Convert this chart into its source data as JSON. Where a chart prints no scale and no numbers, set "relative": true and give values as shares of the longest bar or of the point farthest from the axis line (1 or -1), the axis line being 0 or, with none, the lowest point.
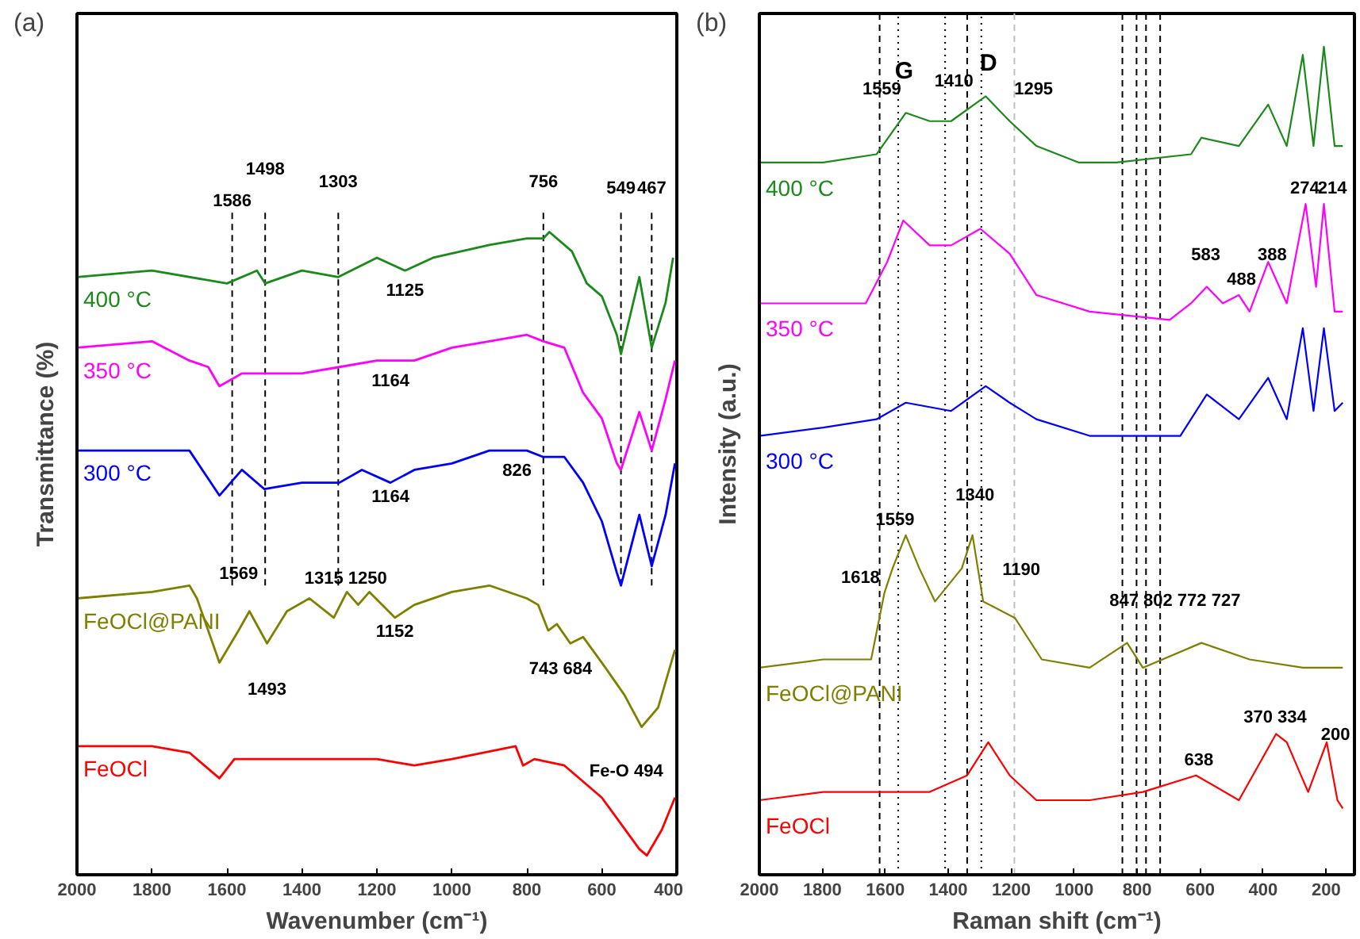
{
  "chart_data": [
    {
      "type": "line",
      "title": "(a)",
      "xlabel": "Wavenumber (cm⁻¹)",
      "ylabel": "Transmittance (%)",
      "relative": true,
      "xlim": [
        2000,
        400
      ],
      "xticks": [
        2000,
        1800,
        1600,
        1400,
        1200,
        1000,
        800,
        600,
        400
      ],
      "tick_labels": "x",
      "grid": false,
      "series": [
        {
          "name": "400 °C",
          "color": "#1a8a1a",
          "x": [
            2000,
            1800,
            1600,
            1520,
            1498,
            1400,
            1303,
            1200,
            1125,
            1050,
            900,
            800,
            756,
            740,
            680,
            640,
            600,
            560,
            549,
            500,
            467,
            430,
            410
          ],
          "values": [
            0.93,
            0.94,
            0.92,
            0.94,
            0.92,
            0.94,
            0.93,
            0.96,
            0.94,
            0.96,
            0.98,
            0.99,
            0.99,
            1,
            0.97,
            0.92,
            0.9,
            0.84,
            0.81,
            0.93,
            0.82,
            0.89,
            0.96
          ]
        },
        {
          "name": "350 °C",
          "color": "#ff00ff",
          "x": [
            2000,
            1800,
            1700,
            1650,
            1620,
            1560,
            1500,
            1400,
            1300,
            1200,
            1100,
            1000,
            900,
            800,
            756,
            700,
            650,
            600,
            560,
            549,
            500,
            467,
            430,
            405
          ],
          "values": [
            0.82,
            0.83,
            0.8,
            0.79,
            0.76,
            0.78,
            0.78,
            0.78,
            0.79,
            0.8,
            0.8,
            0.82,
            0.83,
            0.84,
            0.83,
            0.82,
            0.75,
            0.71,
            0.64,
            0.63,
            0.72,
            0.66,
            0.74,
            0.8
          ]
        },
        {
          "name": "300 °C",
          "color": "#0000ff",
          "x": [
            2000,
            1800,
            1700,
            1620,
            1560,
            1500,
            1400,
            1300,
            1240,
            1164,
            1100,
            1000,
            900,
            800,
            756,
            700,
            650,
            600,
            560,
            549,
            500,
            467,
            430,
            405
          ],
          "values": [
            0.66,
            0.66,
            0.66,
            0.59,
            0.63,
            0.6,
            0.61,
            0.61,
            0.63,
            0.61,
            0.63,
            0.64,
            0.66,
            0.66,
            0.65,
            0.65,
            0.61,
            0.55,
            0.47,
            0.45,
            0.56,
            0.48,
            0.56,
            0.64
          ]
        },
        {
          "name": "FeOCl@PANI",
          "color": "#808000",
          "x": [
            2000,
            1800,
            1700,
            1680,
            1620,
            1569,
            1540,
            1493,
            1440,
            1380,
            1315,
            1280,
            1250,
            1220,
            1152,
            1100,
            1000,
            900,
            800,
            770,
            743,
            720,
            684,
            650,
            600,
            540,
            494,
            450,
            405
          ],
          "values": [
            0.43,
            0.44,
            0.45,
            0.43,
            0.33,
            0.38,
            0.41,
            0.36,
            0.41,
            0.43,
            0.4,
            0.44,
            0.42,
            0.44,
            0.4,
            0.42,
            0.44,
            0.45,
            0.43,
            0.42,
            0.38,
            0.39,
            0.36,
            0.37,
            0.33,
            0.28,
            0.23,
            0.26,
            0.35
          ]
        },
        {
          "name": "FeOCl",
          "color": "#ff0000",
          "x": [
            2000,
            1800,
            1700,
            1620,
            1580,
            1400,
            1200,
            1100,
            1000,
            830,
            810,
            780,
            700,
            600,
            500,
            480,
            440,
            405
          ],
          "values": [
            0.2,
            0.2,
            0.19,
            0.15,
            0.18,
            0.18,
            0.18,
            0.17,
            0.18,
            0.2,
            0.17,
            0.18,
            0.17,
            0.12,
            0.04,
            0.03,
            0.07,
            0.12
          ]
        }
      ],
      "ref_lines": [
        {
          "axis": "x",
          "value": 1586,
          "color": "#000000",
          "line_style": "dashed"
        },
        {
          "axis": "x",
          "value": 1498,
          "color": "#000000",
          "line_style": "dashed"
        },
        {
          "axis": "x",
          "value": 1303,
          "color": "#000000",
          "line_style": "dashed"
        },
        {
          "axis": "x",
          "value": 756,
          "color": "#000000",
          "line_style": "dashed"
        },
        {
          "axis": "x",
          "value": 549,
          "color": "#000000",
          "line_style": "dashed"
        },
        {
          "axis": "x",
          "value": 467,
          "color": "#000000",
          "line_style": "dashed"
        }
      ],
      "annotations": [
        "1586",
        "1498",
        "1303",
        "756",
        "549",
        "467",
        "1125",
        "1164",
        "1164",
        "826",
        "1569",
        "1493",
        "1315 1250",
        "1152",
        "743 684",
        "Fe-O 494"
      ]
    },
    {
      "type": "line",
      "title": "(b)",
      "xlabel": "Raman shift (cm⁻¹)",
      "ylabel": "Intensity (a.u.)",
      "relative": true,
      "xlim": [
        2000,
        110
      ],
      "xticks": [
        2000,
        1800,
        1600,
        1400,
        1200,
        1000,
        800,
        600,
        400,
        200
      ],
      "tick_labels": "x",
      "grid": false,
      "series": [
        {
          "name": "400 °C",
          "color": "#1a8a1a",
          "x": [
            2000,
            1797,
            1628,
            1535,
            1459,
            1391,
            1281,
            1205,
            1120,
            985,
            866,
            629,
            596,
            477,
            384,
            325,
            274,
            240,
            207,
            173,
            147
          ],
          "values": [
            0.86,
            0.86,
            0.87,
            0.92,
            0.91,
            0.91,
            0.94,
            0.91,
            0.88,
            0.86,
            0.86,
            0.87,
            0.89,
            0.88,
            0.93,
            0.88,
            0.99,
            0.88,
            1,
            0.88,
            0.88
          ]
        },
        {
          "name": "350 °C",
          "color": "#ff00ff",
          "x": [
            2000,
            1797,
            1662,
            1594,
            1543,
            1459,
            1391,
            1298,
            1205,
            1120,
            951,
            697,
            629,
            579,
            528,
            477,
            443,
            384,
            325,
            265,
            232,
            207,
            173,
            147
          ],
          "values": [
            0.69,
            0.69,
            0.69,
            0.74,
            0.79,
            0.76,
            0.76,
            0.78,
            0.75,
            0.7,
            0.68,
            0.67,
            0.69,
            0.71,
            0.69,
            0.7,
            0.68,
            0.74,
            0.69,
            0.81,
            0.71,
            0.81,
            0.68,
            0.68
          ]
        },
        {
          "name": "300 °C",
          "color": "#0000ff",
          "x": [
            2000,
            1797,
            1628,
            1535,
            1391,
            1281,
            1205,
            1120,
            951,
            663,
            579,
            477,
            384,
            325,
            274,
            240,
            207,
            173,
            147
          ],
          "values": [
            0.53,
            0.54,
            0.55,
            0.57,
            0.56,
            0.59,
            0.57,
            0.55,
            0.53,
            0.53,
            0.58,
            0.55,
            0.6,
            0.55,
            0.66,
            0.56,
            0.66,
            0.56,
            0.57
          ]
        },
        {
          "name": "FeOCl@PANI",
          "color": "#808000",
          "x": [
            2000,
            1797,
            1645,
            1603,
            1577,
            1535,
            1492,
            1442,
            1357,
            1323,
            1289,
            1188,
            1103,
            951,
            832,
            782,
            596,
            443,
            274,
            147
          ],
          "values": [
            0.25,
            0.26,
            0.26,
            0.34,
            0.37,
            0.41,
            0.37,
            0.33,
            0.37,
            0.41,
            0.33,
            0.31,
            0.26,
            0.25,
            0.28,
            0.25,
            0.28,
            0.26,
            0.25,
            0.25
          ]
        },
        {
          "name": "FeOCl",
          "color": "#ff0000",
          "x": [
            2000,
            1797,
            1459,
            1340,
            1273,
            1205,
            1120,
            951,
            782,
            613,
            477,
            359,
            325,
            257,
            198,
            164,
            147
          ],
          "values": [
            0.09,
            0.1,
            0.1,
            0.12,
            0.16,
            0.12,
            0.09,
            0.09,
            0.1,
            0.12,
            0.09,
            0.17,
            0.16,
            0.1,
            0.16,
            0.09,
            0.08
          ]
        }
      ],
      "ref_lines": [
        {
          "axis": "x",
          "value": 1618,
          "color": "#000000",
          "line_style": "dashed"
        },
        {
          "axis": "x",
          "value": 1559,
          "color": "#000000",
          "line_style": "dotted"
        },
        {
          "axis": "x",
          "value": 1410,
          "color": "#000000",
          "line_style": "dotted"
        },
        {
          "axis": "x",
          "value": 1340,
          "color": "#000000",
          "line_style": "dashed"
        },
        {
          "axis": "x",
          "value": 1295,
          "color": "#000000",
          "line_style": "dotted"
        },
        {
          "axis": "x",
          "value": 1190,
          "color": "#c0c0c0",
          "line_style": "dashed"
        },
        {
          "axis": "x",
          "value": 847,
          "color": "#000000",
          "line_style": "dashed"
        },
        {
          "axis": "x",
          "value": 802,
          "color": "#000000",
          "line_style": "dashed"
        },
        {
          "axis": "x",
          "value": 772,
          "color": "#000000",
          "line_style": "dashed"
        },
        {
          "axis": "x",
          "value": 727,
          "color": "#000000",
          "line_style": "dashed"
        }
      ],
      "annotations": [
        "G",
        "D",
        "1559",
        "1410",
        "1295",
        "583",
        "488",
        "388",
        "274",
        "214",
        "1559",
        "1340",
        "1618",
        "1190",
        "847 802 772 727",
        "638",
        "370 334",
        "200"
      ]
    }
  ]
}
